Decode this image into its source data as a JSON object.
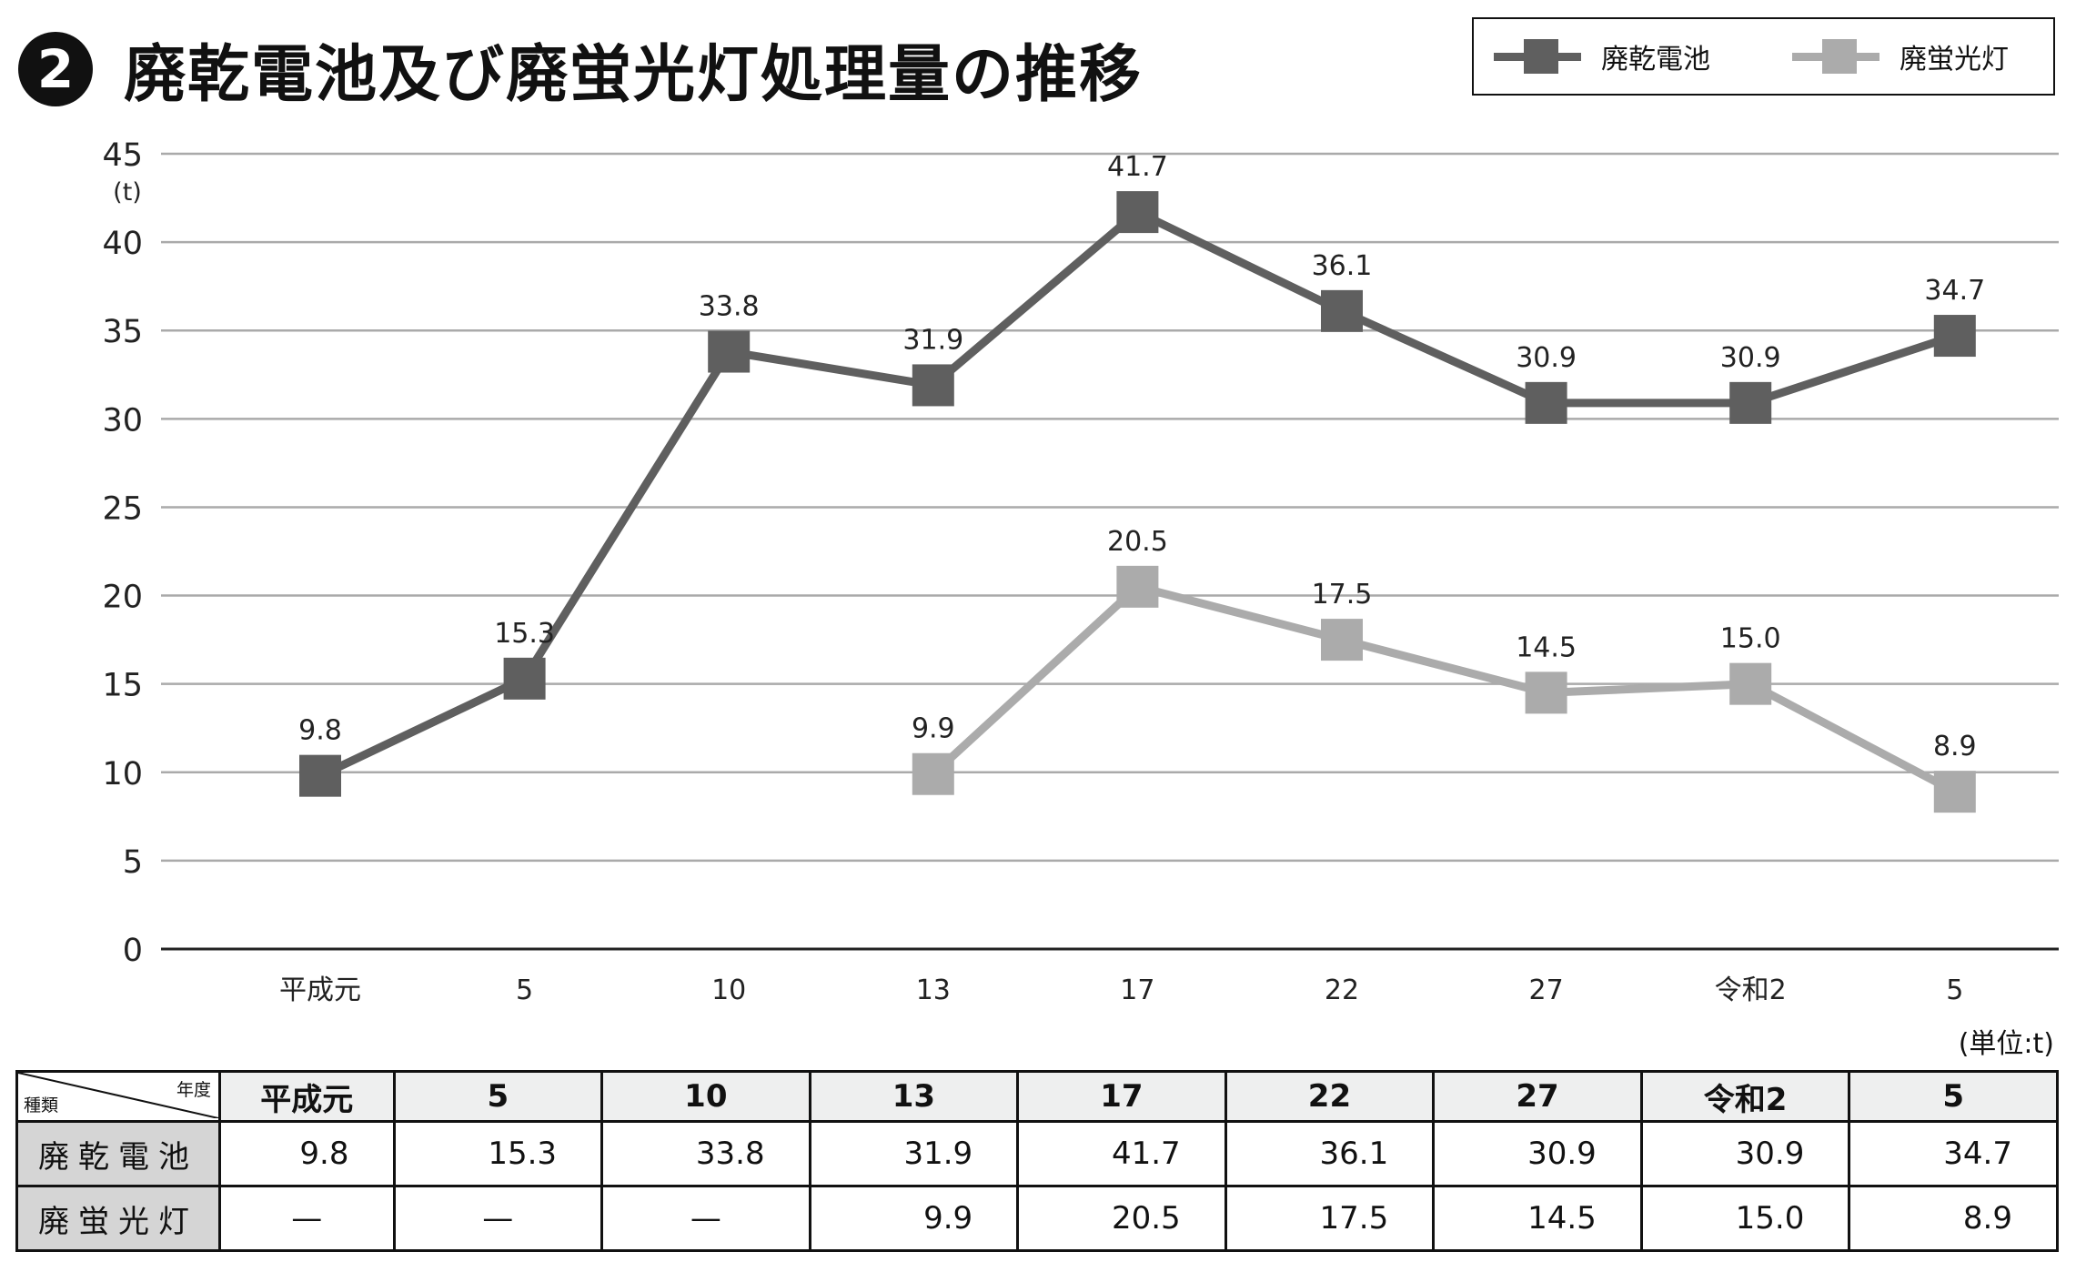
{
  "title": {
    "number": "2",
    "text": "廃乾電池及び廃蛍光灯処理量の推移"
  },
  "legend": [
    {
      "name": "廃乾電池",
      "color": "#5f5f5f"
    },
    {
      "name": "廃蛍光灯",
      "color": "#ababab"
    }
  ],
  "unit_note": "(単位:t)",
  "chart_data": {
    "type": "line",
    "title": "廃乾電池及び廃蛍光灯処理量の推移",
    "ylabel": "(t)",
    "xlabel": "",
    "ylim": [
      0,
      45
    ],
    "yticks": [
      0,
      5,
      10,
      15,
      20,
      25,
      30,
      35,
      40,
      45
    ],
    "grid": true,
    "legend_position": "top-right",
    "categories": [
      "平成元",
      "5",
      "10",
      "13",
      "17",
      "22",
      "27",
      "令和2",
      "5"
    ],
    "series": [
      {
        "name": "廃乾電池",
        "color": "#5f5f5f",
        "values": [
          9.8,
          15.3,
          33.8,
          31.9,
          41.7,
          36.1,
          30.9,
          30.9,
          34.7
        ],
        "labels": [
          "9.8",
          "15.3",
          "33.8",
          "31.9",
          "41.7",
          "36.1",
          "30.9",
          "30.9",
          "34.7"
        ]
      },
      {
        "name": "廃蛍光灯",
        "color": "#ababab",
        "values": [
          null,
          null,
          null,
          9.9,
          20.5,
          17.5,
          14.5,
          15.0,
          8.9
        ],
        "labels": [
          null,
          null,
          null,
          "9.9",
          "20.5",
          "17.5",
          "14.5",
          "15.0",
          "8.9"
        ]
      }
    ]
  },
  "table": {
    "corner_top": "年度",
    "corner_bottom": "種類",
    "headers": [
      "平成元",
      "5",
      "10",
      "13",
      "17",
      "22",
      "27",
      "令和2",
      "5"
    ],
    "rows": [
      {
        "label": "廃乾電池",
        "cells": [
          "9.8",
          "15.3",
          "33.8",
          "31.9",
          "41.7",
          "36.1",
          "30.9",
          "30.9",
          "34.7"
        ]
      },
      {
        "label": "廃蛍光灯",
        "cells": [
          "—",
          "—",
          "—",
          "9.9",
          "20.5",
          "17.5",
          "14.5",
          "15.0",
          "8.9"
        ]
      }
    ]
  }
}
